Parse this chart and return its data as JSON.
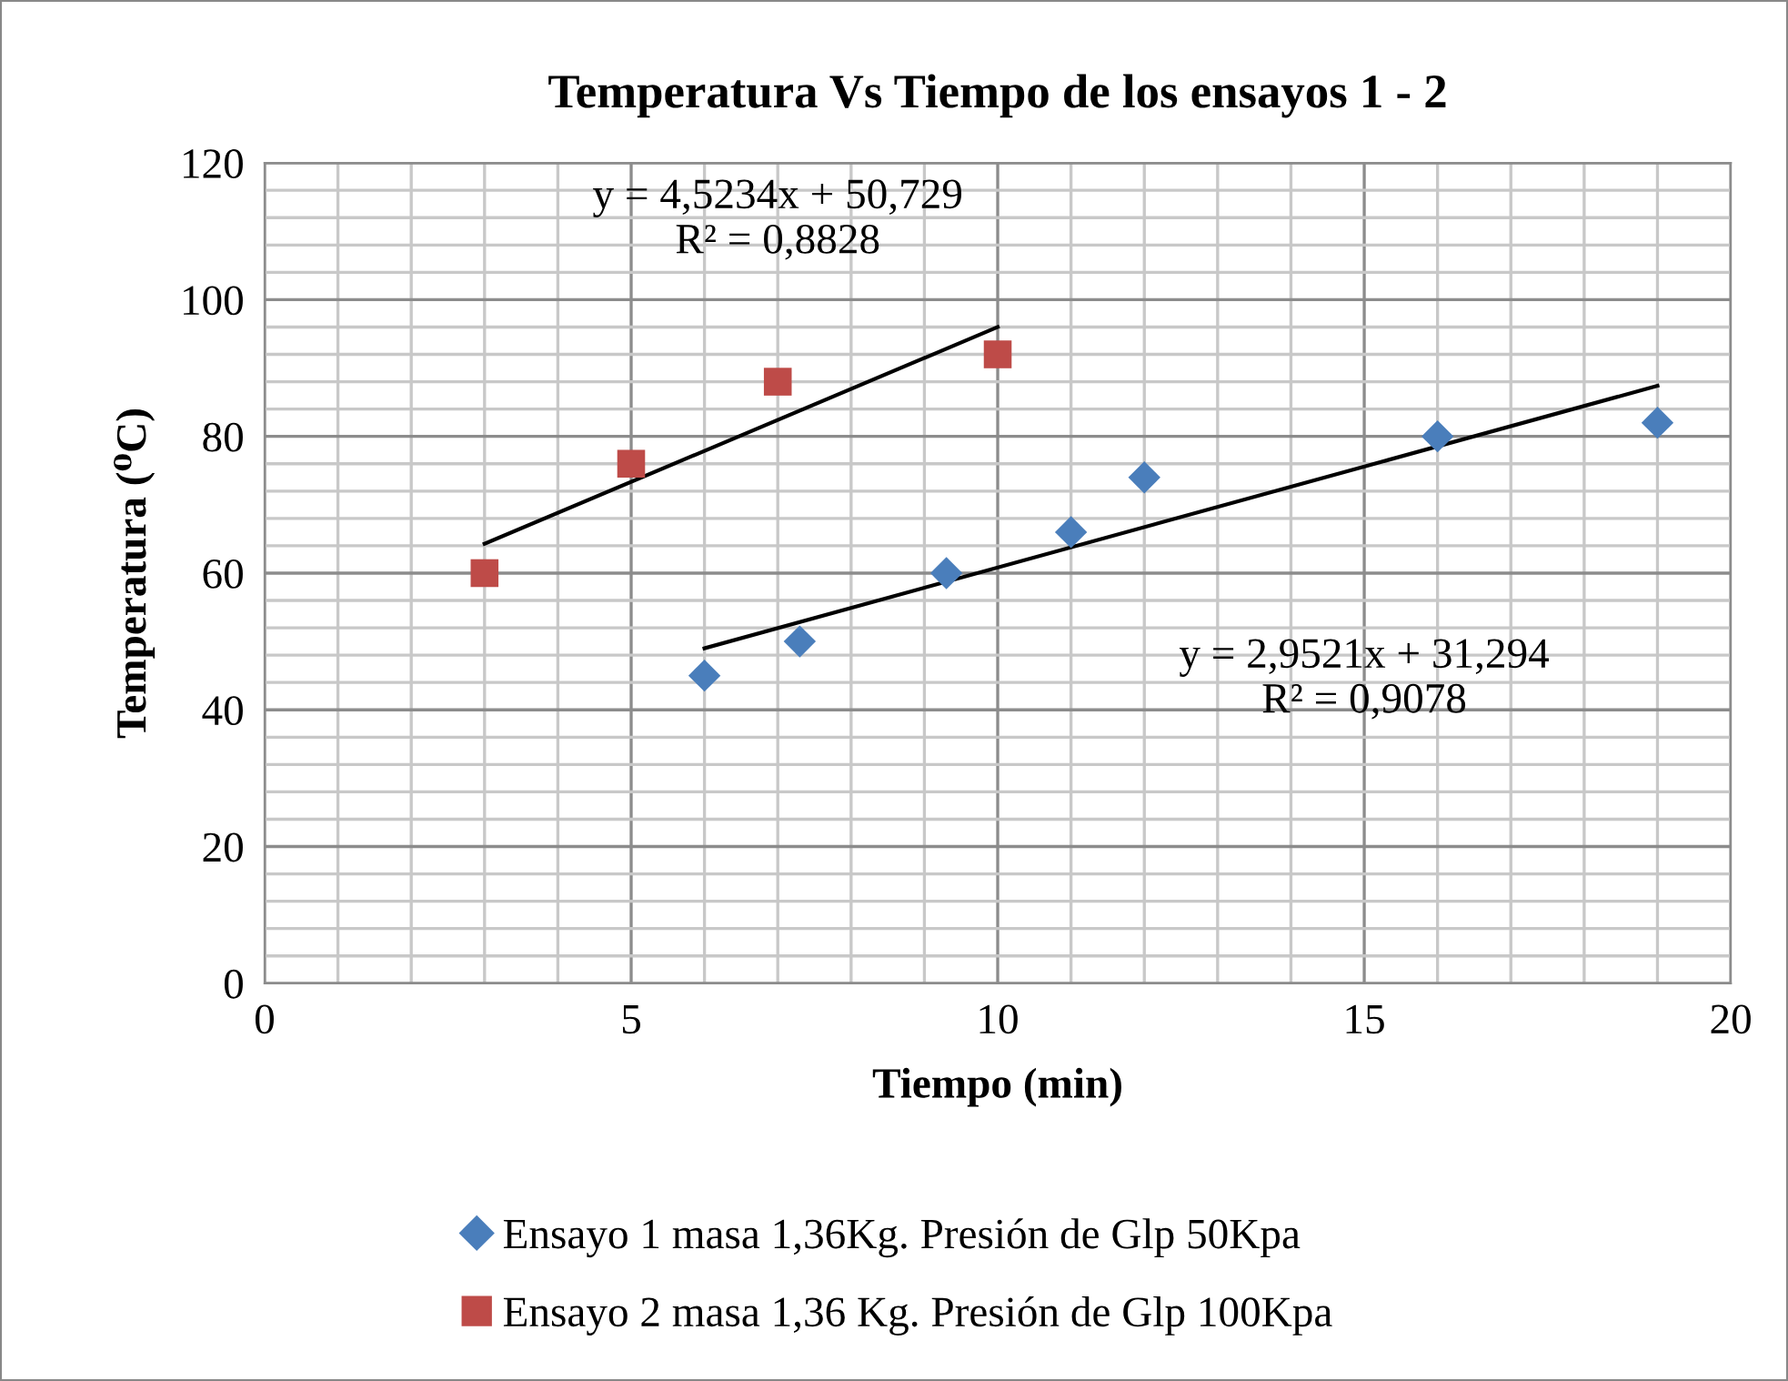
{
  "chart_data": {
    "type": "scatter",
    "title": "Temperatura Vs Tiempo de los ensayos 1 - 2",
    "xlabel": "Tiempo (min)",
    "ylabel": "Temperatura (⁰C)",
    "series": [
      {
        "name": "Ensayo 1 masa 1,36Kg. Presión de Glp 50Kpa",
        "color": "#4a7ebb",
        "marker": "diamond",
        "x": [
          6,
          7.3,
          9.3,
          11,
          12,
          16,
          19
        ],
        "values": [
          45,
          50,
          60,
          66,
          74,
          80,
          82
        ]
      },
      {
        "name": "Ensayo 2 masa 1,36 Kg. Presión de Glp 100Kpa",
        "color": "#be4b48",
        "marker": "square",
        "x": [
          3,
          5,
          7,
          10
        ],
        "values": [
          60,
          76,
          88,
          92
        ]
      },
      {
        "type": "line",
        "color": "#000000",
        "marker": "none",
        "x": [
          3,
          10
        ],
        "values": [
          64.3,
          96.0
        ]
      },
      {
        "type": "line",
        "color": "#000000",
        "marker": "none",
        "x": [
          6,
          19
        ],
        "values": [
          49.0,
          87.4
        ]
      }
    ],
    "annotations": [
      "y = 4,5234x + 50,729\nR² = 0,8828",
      "y = 2,9521x + 31,294\nR² = 0,9078"
    ],
    "xlim": [
      0,
      20
    ],
    "xticks": [
      0,
      5,
      10,
      15,
      20
    ],
    "ylim": [
      0,
      120
    ],
    "yticks": [
      0,
      20,
      40,
      60,
      80,
      100,
      120
    ],
    "grid": true,
    "legend": "bottom"
  }
}
